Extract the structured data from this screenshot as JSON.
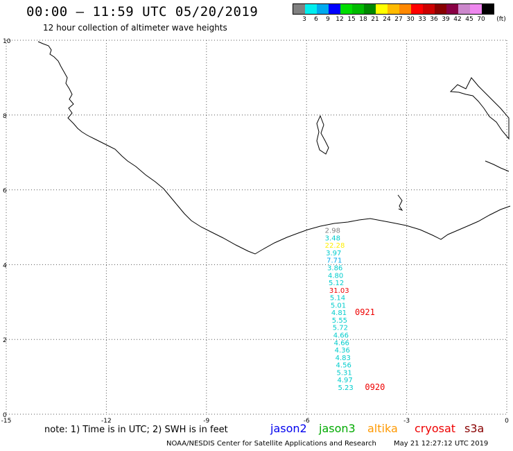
{
  "header": {
    "title": "00:00 – 11:59 UTC 05/20/2019",
    "subtitle": "12 hour collection of altimeter wave heights"
  },
  "legend": {
    "colors": [
      "#808080",
      "#00eeee",
      "#00aaee",
      "#0000ff",
      "#00dd00",
      "#00bb00",
      "#008800",
      "#ffff00",
      "#ffbb00",
      "#ff8800",
      "#ff0000",
      "#cc0000",
      "#880000",
      "#880044",
      "#cc88cc",
      "#ee88ee",
      "#000000"
    ],
    "labels": [
      "3",
      "6",
      "9",
      "12",
      "15",
      "18",
      "21",
      "24",
      "27",
      "30",
      "33",
      "36",
      "39",
      "42",
      "45",
      "70",
      "(ft)"
    ]
  },
  "chart_data": {
    "type": "scatter",
    "xlim": [
      -15,
      0
    ],
    "ylim": [
      0,
      10
    ],
    "x_ticks": [
      "-15",
      "-12",
      "-9",
      "-6",
      "-3",
      "0"
    ],
    "y_ticks": [
      "0",
      "2",
      "4",
      "6",
      "8",
      "10"
    ],
    "grid": true,
    "points": [
      {
        "x": -5.45,
        "y": 4.85,
        "swh": "2.98",
        "color": "#808080"
      },
      {
        "x": -5.45,
        "y": 4.65,
        "swh": "3.48",
        "color": "#00cccc"
      },
      {
        "x": -5.45,
        "y": 4.45,
        "swh": "22.28",
        "color": "#ffee00"
      },
      {
        "x": -5.42,
        "y": 4.25,
        "swh": "3.97",
        "color": "#00cccc"
      },
      {
        "x": -5.4,
        "y": 4.05,
        "swh": "7.71",
        "color": "#00aaee"
      },
      {
        "x": -5.38,
        "y": 3.85,
        "swh": "3.86",
        "color": "#00cccc"
      },
      {
        "x": -5.36,
        "y": 3.65,
        "swh": "4.80",
        "color": "#00cccc"
      },
      {
        "x": -5.34,
        "y": 3.45,
        "swh": "5.12",
        "color": "#00cccc"
      },
      {
        "x": -5.32,
        "y": 3.25,
        "swh": "31.03",
        "color": "#ee0000"
      },
      {
        "x": -5.3,
        "y": 3.05,
        "swh": "5.14",
        "color": "#00cccc"
      },
      {
        "x": -5.28,
        "y": 2.85,
        "swh": "5.01",
        "color": "#00cccc"
      },
      {
        "x": -5.26,
        "y": 2.65,
        "swh": "4.81",
        "color": "#00cccc"
      },
      {
        "x": -5.24,
        "y": 2.45,
        "swh": "5.55",
        "color": "#00cccc"
      },
      {
        "x": -5.22,
        "y": 2.25,
        "swh": "5.72",
        "color": "#00cccc"
      },
      {
        "x": -5.2,
        "y": 2.05,
        "swh": "4.66",
        "color": "#00cccc"
      },
      {
        "x": -5.18,
        "y": 1.85,
        "swh": "4.66",
        "color": "#00cccc"
      },
      {
        "x": -5.16,
        "y": 1.65,
        "swh": "4.36",
        "color": "#00cccc"
      },
      {
        "x": -5.14,
        "y": 1.45,
        "swh": "4.83",
        "color": "#00cccc"
      },
      {
        "x": -5.12,
        "y": 1.25,
        "swh": "4.56",
        "color": "#00cccc"
      },
      {
        "x": -5.1,
        "y": 1.05,
        "swh": "5.31",
        "color": "#00cccc"
      },
      {
        "x": -5.08,
        "y": 0.85,
        "swh": "4.97",
        "color": "#00cccc"
      },
      {
        "x": -5.06,
        "y": 0.65,
        "swh": "5.23",
        "color": "#00cccc"
      }
    ],
    "time_labels": [
      {
        "x": -4.55,
        "y": 2.65,
        "text": "0921",
        "color": "#ee0000"
      },
      {
        "x": -4.25,
        "y": 0.65,
        "text": "0920",
        "color": "#ee0000"
      }
    ]
  },
  "footer": {
    "note": "note: 1) Time is in UTC; 2) SWH is in feet",
    "satellites": [
      {
        "name": "jason2",
        "color": "#0000ee"
      },
      {
        "name": "jason3",
        "color": "#00aa00"
      },
      {
        "name": "altika",
        "color": "#ff9900"
      },
      {
        "name": "cryosat",
        "color": "#ee0000"
      },
      {
        "name": "s3a",
        "color": "#880000"
      }
    ],
    "credit": "NOAA/NESDIS Center for Satellite Applications and Research",
    "timestamp": "May 21 12:27:12 UTC 2019"
  }
}
